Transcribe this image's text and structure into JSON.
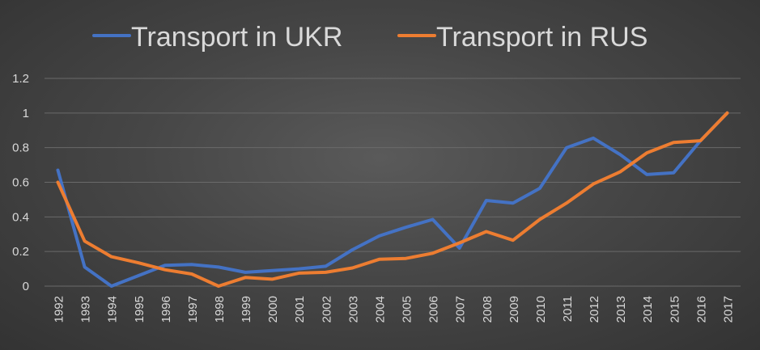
{
  "chart_data": {
    "type": "line",
    "title": "",
    "xlabel": "",
    "ylabel": "",
    "categories": [
      "1992",
      "1993",
      "1994",
      "1995",
      "1996",
      "1997",
      "1998",
      "1999",
      "2000",
      "2001",
      "2002",
      "2003",
      "2004",
      "2005",
      "2006",
      "2007",
      "2008",
      "2009",
      "2010",
      "2011",
      "2012",
      "2013",
      "2014",
      "2015",
      "2016",
      "2017"
    ],
    "ylim": [
      0,
      1.2
    ],
    "yticks": [
      "0",
      "0.2",
      "0.4",
      "0.6",
      "0.8",
      "1",
      "1.2"
    ],
    "grid": true,
    "legend_position": "top",
    "series": [
      {
        "name": "Transport in UKR",
        "color": "#4472c4",
        "values": [
          0.67,
          0.11,
          0.0,
          0.06,
          0.12,
          0.125,
          0.11,
          0.08,
          0.09,
          0.1,
          0.115,
          0.21,
          0.29,
          0.34,
          0.385,
          0.22,
          0.495,
          0.48,
          0.565,
          0.8,
          0.855,
          0.76,
          0.645,
          0.655,
          0.84,
          1.0
        ]
      },
      {
        "name": "Transport in RUS",
        "color": "#ed7d31",
        "values": [
          0.6,
          0.26,
          0.17,
          0.135,
          0.095,
          0.07,
          0.0,
          0.05,
          0.04,
          0.075,
          0.08,
          0.105,
          0.155,
          0.16,
          0.19,
          0.25,
          0.315,
          0.265,
          0.385,
          0.48,
          0.59,
          0.66,
          0.77,
          0.83,
          0.84,
          1.0
        ]
      }
    ]
  }
}
